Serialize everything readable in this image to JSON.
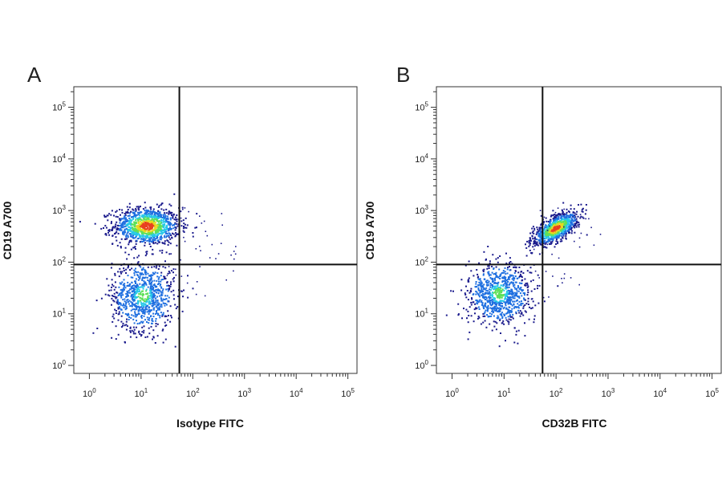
{
  "chart_data": [
    {
      "type": "scatter",
      "panel_label": "A",
      "xlabel": "Isotype FITC",
      "ylabel": "CD19 A700",
      "xscale": "log",
      "yscale": "log",
      "xlim": [
        0.5,
        150000
      ],
      "ylim": [
        0.7,
        250000
      ],
      "x_ticks": [
        {
          "base": "10",
          "exp": "0",
          "value": 1
        },
        {
          "base": "10",
          "exp": "1",
          "value": 10
        },
        {
          "base": "10",
          "exp": "2",
          "value": 100
        },
        {
          "base": "10",
          "exp": "3",
          "value": 1000
        },
        {
          "base": "10",
          "exp": "4",
          "value": 10000
        },
        {
          "base": "10",
          "exp": "5",
          "value": 100000
        }
      ],
      "y_ticks": [
        {
          "base": "10",
          "exp": "0",
          "value": 1
        },
        {
          "base": "10",
          "exp": "1",
          "value": 10
        },
        {
          "base": "10",
          "exp": "2",
          "value": 100
        },
        {
          "base": "10",
          "exp": "3",
          "value": 1000
        },
        {
          "base": "10",
          "exp": "4",
          "value": 10000
        },
        {
          "base": "10",
          "exp": "5",
          "value": 100000
        }
      ],
      "gate": {
        "x": 55,
        "y": 90
      },
      "populations": [
        {
          "name": "",
          "center_x": 13,
          "center_y": 500,
          "spread_x_dex": 0.32,
          "spread_y_dex": 0.18,
          "count": 1100,
          "density_peak": "red"
        },
        {
          "name": "",
          "center_x": 11,
          "center_y": 22,
          "spread_x_dex": 0.3,
          "spread_y_dex": 0.34,
          "count": 850,
          "density_peak": "cyan"
        }
      ],
      "quadrant_summary": {
        "upper_left": "major population",
        "lower_left": "major population",
        "upper_right": "sparse events",
        "lower_right": "sparse events"
      },
      "colors": {
        "low": "#1a1a8c",
        "mid_low": "#1e6fe0",
        "mid": "#27c8e8",
        "mid_high": "#5fe05a",
        "high": "#e8d820",
        "peak": "#e8401e"
      }
    },
    {
      "type": "scatter",
      "panel_label": "B",
      "xlabel": "CD32B FITC",
      "ylabel": "CD19 A700",
      "xscale": "log",
      "yscale": "log",
      "xlim": [
        0.5,
        150000
      ],
      "ylim": [
        0.7,
        250000
      ],
      "x_ticks": [
        {
          "base": "10",
          "exp": "0",
          "value": 1
        },
        {
          "base": "10",
          "exp": "1",
          "value": 10
        },
        {
          "base": "10",
          "exp": "2",
          "value": 100
        },
        {
          "base": "10",
          "exp": "3",
          "value": 1000
        },
        {
          "base": "10",
          "exp": "4",
          "value": 10000
        },
        {
          "base": "10",
          "exp": "5",
          "value": 100000
        }
      ],
      "y_ticks": [
        {
          "base": "10",
          "exp": "0",
          "value": 1
        },
        {
          "base": "10",
          "exp": "1",
          "value": 10
        },
        {
          "base": "10",
          "exp": "2",
          "value": 100
        },
        {
          "base": "10",
          "exp": "3",
          "value": 1000
        },
        {
          "base": "10",
          "exp": "4",
          "value": 10000
        },
        {
          "base": "10",
          "exp": "5",
          "value": 100000
        }
      ],
      "gate": {
        "x": 55,
        "y": 90
      },
      "populations": [
        {
          "name": "",
          "center_x": 100,
          "center_y": 450,
          "spread_x_dex": 0.22,
          "spread_y_dex": 0.16,
          "count": 900,
          "density_peak": "red",
          "correlated": true
        },
        {
          "name": "",
          "center_x": 8,
          "center_y": 25,
          "spread_x_dex": 0.3,
          "spread_y_dex": 0.3,
          "count": 850,
          "density_peak": "cyan"
        }
      ],
      "quadrant_summary": {
        "upper_right": "major population",
        "lower_left": "major population",
        "upper_left": "sparse events",
        "lower_right": "sparse events"
      },
      "colors": {
        "low": "#1a1a8c",
        "mid_low": "#1e6fe0",
        "mid": "#27c8e8",
        "mid_high": "#5fe05a",
        "high": "#e8d820",
        "peak": "#e8401e"
      }
    }
  ]
}
